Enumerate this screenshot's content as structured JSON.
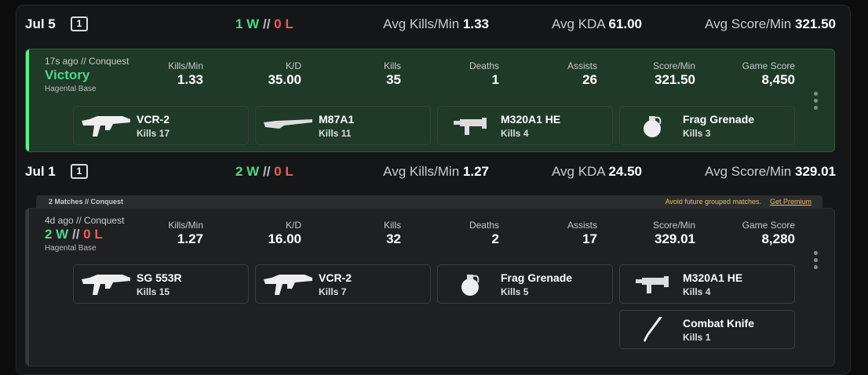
{
  "days": [
    {
      "date": "Jul 5",
      "count": "1",
      "wins": "1 W",
      "sep": "//",
      "losses": "0 L",
      "averages": [
        {
          "label": "Avg Kills/Min",
          "value": "1.33"
        },
        {
          "label": "Avg KDA",
          "value": "61.00"
        },
        {
          "label": "Avg Score/Min",
          "value": "321.50"
        }
      ],
      "matches": [
        {
          "time": "17s ago // Conquest",
          "result": "Victory",
          "map": "Hagental Base",
          "stats": [
            {
              "label": "Kills/Min",
              "value": "1.33"
            },
            {
              "label": "K/D",
              "value": "35.00"
            },
            {
              "label": "Kills",
              "value": "35"
            },
            {
              "label": "Deaths",
              "value": "1"
            },
            {
              "label": "Assists",
              "value": "26"
            },
            {
              "label": "Score/Min",
              "value": "321.50"
            },
            {
              "label": "Game Score",
              "value": "8,450"
            }
          ],
          "weapons": [
            {
              "name": "VCR-2",
              "kills_label": "Kills",
              "kills": "17"
            },
            {
              "name": "M87A1",
              "kills_label": "Kills",
              "kills": "11"
            },
            {
              "name": "M320A1 HE",
              "kills_label": "Kills",
              "kills": "4"
            },
            {
              "name": "Frag Grenade",
              "kills_label": "Kills",
              "kills": "3"
            }
          ]
        }
      ]
    },
    {
      "date": "Jul 1",
      "count": "1",
      "wins": "2 W",
      "sep": "//",
      "losses": "0 L",
      "averages": [
        {
          "label": "Avg Kills/Min",
          "value": "1.27"
        },
        {
          "label": "Avg KDA",
          "value": "24.50"
        },
        {
          "label": "Avg Score/Min",
          "value": "329.01"
        }
      ],
      "group": {
        "title": "2 Matches // Conquest",
        "note": "Avoid future grouped matches.",
        "link": "Get Premium"
      },
      "matches": [
        {
          "time": "4d ago // Conquest",
          "result_wins": "2 W",
          "result_sep": "//",
          "result_losses": "0 L",
          "map": "Hagental Base",
          "stats": [
            {
              "label": "Kills/Min",
              "value": "1.27"
            },
            {
              "label": "K/D",
              "value": "16.00"
            },
            {
              "label": "Kills",
              "value": "32"
            },
            {
              "label": "Deaths",
              "value": "2"
            },
            {
              "label": "Assists",
              "value": "17"
            },
            {
              "label": "Score/Min",
              "value": "329.01"
            },
            {
              "label": "Game Score",
              "value": "8,280"
            }
          ],
          "weapons": [
            {
              "name": "SG 553R",
              "kills_label": "Kills",
              "kills": "15"
            },
            {
              "name": "VCR-2",
              "kills_label": "Kills",
              "kills": "7"
            },
            {
              "name": "Frag Grenade",
              "kills_label": "Kills",
              "kills": "5"
            },
            {
              "name": "M320A1 HE",
              "kills_label": "Kills",
              "kills": "4"
            },
            {
              "name": "Combat Knife",
              "kills_label": "Kills",
              "kills": "1"
            }
          ]
        }
      ]
    }
  ]
}
